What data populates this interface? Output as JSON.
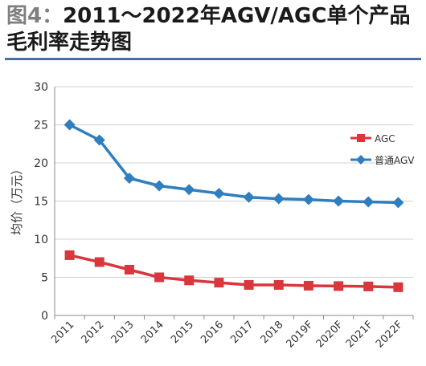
{
  "header": {
    "fig_label": "图4：",
    "title_line1": "2011～2022年AGV/AGC单个产品",
    "title_line2": "毛利率走势图"
  },
  "colors": {
    "rule": "#4a6fa5",
    "agc": "#d9363e",
    "agv": "#2e7fbf",
    "grid": "#d0d0d0",
    "axis_text": "#333333"
  },
  "chart_data": {
    "type": "line",
    "title": "2011～2022年AGV/AGC单个产品毛利率走势图",
    "xlabel": "",
    "ylabel": "均价（万元）",
    "ylim": [
      0,
      30
    ],
    "yticks": [
      "0",
      "5",
      "10",
      "15",
      "20",
      "25",
      "30"
    ],
    "grid": true,
    "legend_position": "right",
    "categories": [
      "2011",
      "2012",
      "2013",
      "2014",
      "2015",
      "2016",
      "2017",
      "2018",
      "2019F",
      "2020F",
      "2021F",
      "2022F"
    ],
    "series": [
      {
        "name": "AGC",
        "color": "#d9363e",
        "marker": "square",
        "values": [
          7.9,
          7.0,
          6.0,
          5.0,
          4.6,
          4.3,
          4.0,
          4.0,
          3.9,
          3.85,
          3.8,
          3.7
        ]
      },
      {
        "name": "普通AGV",
        "color": "#2e7fbf",
        "marker": "diamond",
        "values": [
          25.0,
          23.0,
          18.0,
          17.0,
          16.5,
          16.0,
          15.5,
          15.3,
          15.2,
          15.0,
          14.9,
          14.8
        ]
      }
    ]
  }
}
